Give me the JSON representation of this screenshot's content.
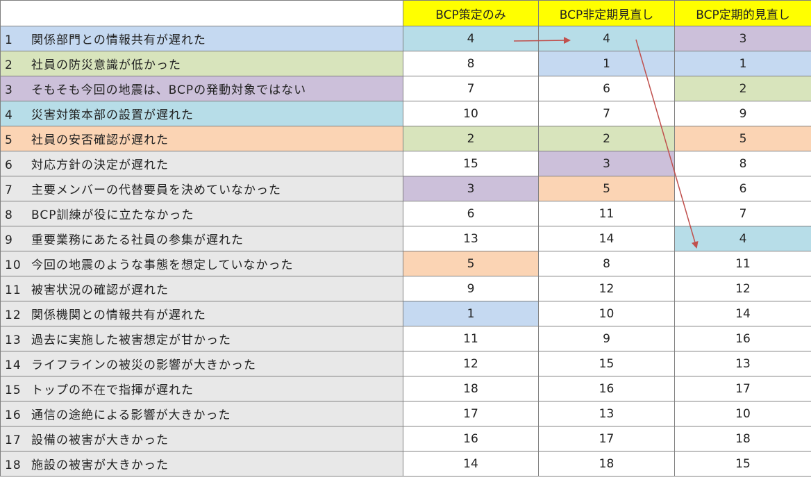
{
  "colors": {
    "header_yellow": "#ffff00",
    "label_gray": "#e8e8e8",
    "blue": "#c5d9f1",
    "green": "#d8e4bc",
    "purple": "#ccc0da",
    "teal": "#b7dde8",
    "orange": "#fbd4b4",
    "arrow": "#c0504d"
  },
  "columns": [
    "BCP策定のみ",
    "BCP非定期見直し",
    "BCP定期的見直し"
  ],
  "rows": [
    {
      "no": "1",
      "label": "関係部門との情報共有が遅れた",
      "color": "blue",
      "values": [
        "4",
        "4",
        "3"
      ],
      "cell_colors": [
        "teal",
        "teal",
        "purple"
      ]
    },
    {
      "no": "2",
      "label": "社員の防災意識が低かった",
      "color": "green",
      "values": [
        "8",
        "1",
        "1"
      ],
      "cell_colors": [
        "",
        "blue",
        "blue"
      ]
    },
    {
      "no": "3",
      "label": "そもそも今回の地震は、BCPの発動対象ではない",
      "color": "purple",
      "values": [
        "7",
        "6",
        "2"
      ],
      "cell_colors": [
        "",
        "",
        "green"
      ]
    },
    {
      "no": "4",
      "label": "災害対策本部の設置が遅れた",
      "color": "teal",
      "values": [
        "10",
        "7",
        "9"
      ],
      "cell_colors": [
        "",
        "",
        ""
      ]
    },
    {
      "no": "5",
      "label": "社員の安否確認が遅れた",
      "color": "orange",
      "values": [
        "2",
        "2",
        "5"
      ],
      "cell_colors": [
        "green",
        "green",
        "orange"
      ]
    },
    {
      "no": "6",
      "label": "対応方針の決定が遅れた",
      "color": "gray",
      "values": [
        "15",
        "3",
        "8"
      ],
      "cell_colors": [
        "",
        "purple",
        ""
      ]
    },
    {
      "no": "7",
      "label": "主要メンバーの代替要員を決めていなかった",
      "color": "gray",
      "values": [
        "3",
        "5",
        "6"
      ],
      "cell_colors": [
        "purple",
        "orange",
        ""
      ]
    },
    {
      "no": "8",
      "label": "BCP訓練が役に立たなかった",
      "color": "gray",
      "values": [
        "6",
        "11",
        "7"
      ],
      "cell_colors": [
        "",
        "",
        ""
      ]
    },
    {
      "no": "9",
      "label": "重要業務にあたる社員の参集が遅れた",
      "color": "gray",
      "values": [
        "13",
        "14",
        "4"
      ],
      "cell_colors": [
        "",
        "",
        "teal"
      ]
    },
    {
      "no": "10",
      "label": "今回の地震のような事態を想定していなかった",
      "color": "gray",
      "values": [
        "5",
        "8",
        "11"
      ],
      "cell_colors": [
        "orange",
        "",
        ""
      ]
    },
    {
      "no": "11",
      "label": "被害状況の確認が遅れた",
      "color": "gray",
      "values": [
        "9",
        "12",
        "12"
      ],
      "cell_colors": [
        "",
        "",
        ""
      ]
    },
    {
      "no": "12",
      "label": "関係機関との情報共有が遅れた",
      "color": "gray",
      "values": [
        "1",
        "10",
        "14"
      ],
      "cell_colors": [
        "blue",
        "",
        ""
      ]
    },
    {
      "no": "13",
      "label": "過去に実施した被害想定が甘かった",
      "color": "gray",
      "values": [
        "11",
        "9",
        "16"
      ],
      "cell_colors": [
        "",
        "",
        ""
      ]
    },
    {
      "no": "14",
      "label": "ライフラインの被災の影響が大きかった",
      "color": "gray",
      "values": [
        "12",
        "15",
        "13"
      ],
      "cell_colors": [
        "",
        "",
        ""
      ]
    },
    {
      "no": "15",
      "label": "トップの不在で指揮が遅れた",
      "color": "gray",
      "values": [
        "18",
        "16",
        "17"
      ],
      "cell_colors": [
        "",
        "",
        ""
      ]
    },
    {
      "no": "16",
      "label": "通信の途絶による影響が大きかった",
      "color": "gray",
      "values": [
        "17",
        "13",
        "10"
      ],
      "cell_colors": [
        "",
        "",
        ""
      ]
    },
    {
      "no": "17",
      "label": "設備の被害が大きかった",
      "color": "gray",
      "values": [
        "16",
        "17",
        "18"
      ],
      "cell_colors": [
        "",
        "",
        ""
      ]
    },
    {
      "no": "18",
      "label": "施設の被害が大きかった",
      "color": "gray",
      "values": [
        "14",
        "18",
        "15"
      ],
      "cell_colors": [
        "",
        "",
        ""
      ]
    }
  ]
}
